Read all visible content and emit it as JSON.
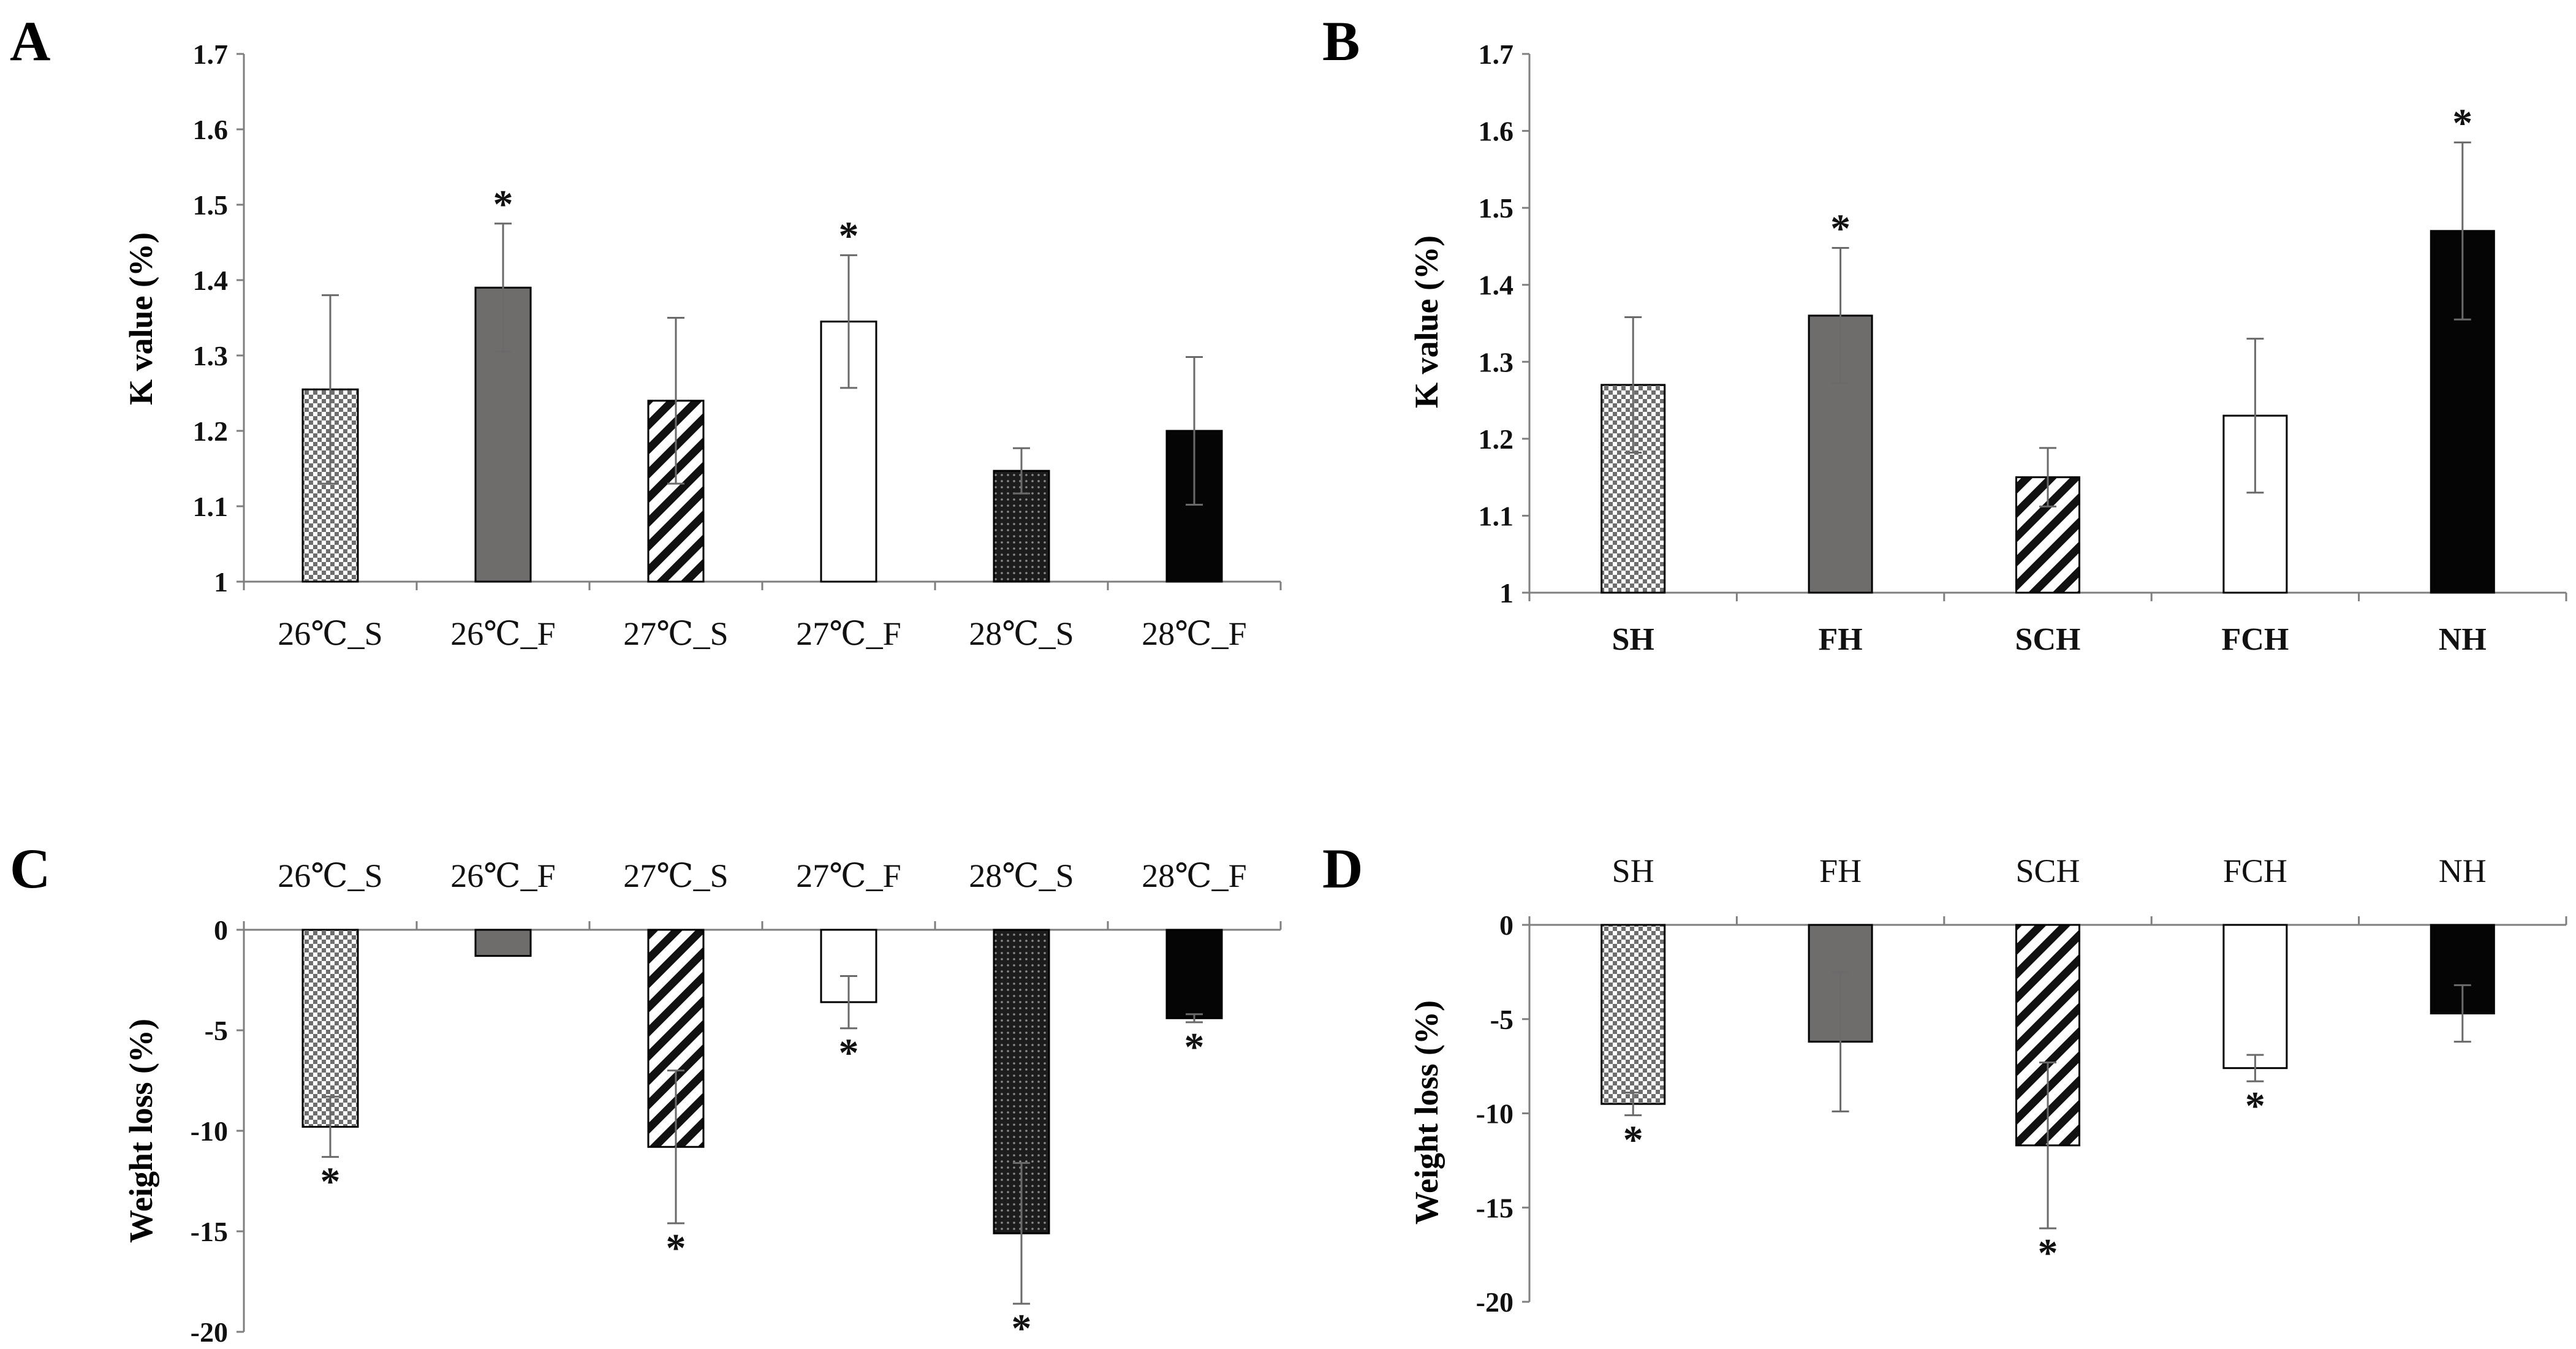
{
  "figure": {
    "panel_letters": [
      "A",
      "B",
      "C",
      "D"
    ]
  },
  "chart_data": [
    {
      "id": "A",
      "type": "bar",
      "ylabel": "K value (%)",
      "ylim": [
        1,
        1.7
      ],
      "yticks": [
        1,
        1.1,
        1.2,
        1.3,
        1.4,
        1.5,
        1.6,
        1.7
      ],
      "categories": [
        "26℃_S",
        "26℃_F",
        "27℃_S",
        "27℃_F",
        "28℃_S",
        "28℃_F"
      ],
      "values": [
        1.255,
        1.39,
        1.24,
        1.345,
        1.147,
        1.2
      ],
      "errors": [
        0.125,
        0.085,
        0.11,
        0.088,
        0.03,
        0.098
      ],
      "significant": [
        false,
        true,
        false,
        true,
        false,
        false
      ],
      "patterns": [
        "checker",
        "gray",
        "diag",
        "white",
        "dots",
        "black"
      ],
      "category_style": "regular",
      "axis_position": "bottom"
    },
    {
      "id": "B",
      "type": "bar",
      "ylabel": "K value (%)",
      "ylim": [
        1,
        1.7
      ],
      "yticks": [
        1,
        1.1,
        1.2,
        1.3,
        1.4,
        1.5,
        1.6,
        1.7
      ],
      "categories": [
        "SH",
        "FH",
        "SCH",
        "FCH",
        "NH"
      ],
      "values": [
        1.27,
        1.36,
        1.15,
        1.23,
        1.47
      ],
      "errors": [
        0.088,
        0.088,
        0.038,
        0.1,
        0.115
      ],
      "significant": [
        false,
        true,
        false,
        false,
        true
      ],
      "patterns": [
        "checker",
        "gray",
        "diag",
        "white",
        "black"
      ],
      "category_style": "bold",
      "axis_position": "bottom"
    },
    {
      "id": "C",
      "type": "bar",
      "ylabel": "Weight loss (%)",
      "ylim": [
        -20,
        0
      ],
      "yticks": [
        0,
        -5,
        -10,
        -15,
        -20
      ],
      "categories": [
        "26℃_S",
        "26℃_F",
        "27℃_S",
        "27℃_F",
        "28℃_S",
        "28℃_F"
      ],
      "values": [
        -9.8,
        -1.3,
        -10.8,
        -3.6,
        -15.1,
        -4.4
      ],
      "errors": [
        1.5,
        0.0,
        3.8,
        1.3,
        3.5,
        0.2
      ],
      "significant": [
        true,
        false,
        true,
        true,
        true,
        true
      ],
      "patterns": [
        "checker",
        "gray",
        "diag",
        "white",
        "dots",
        "black"
      ],
      "category_style": "regular",
      "axis_position": "top"
    },
    {
      "id": "D",
      "type": "bar",
      "ylabel": "Weight loss (%)",
      "ylim": [
        -20,
        0
      ],
      "yticks": [
        0,
        -5,
        -10,
        -15,
        -20
      ],
      "categories": [
        "SH",
        "FH",
        "SCH",
        "FCH",
        "NH"
      ],
      "values": [
        -9.5,
        -6.2,
        -11.7,
        -7.6,
        -4.7
      ],
      "errors": [
        0.6,
        3.7,
        4.4,
        0.7,
        1.5
      ],
      "significant": [
        true,
        false,
        true,
        true,
        false
      ],
      "patterns": [
        "checker",
        "gray",
        "diag",
        "white",
        "black"
      ],
      "category_style": "regular",
      "axis_position": "top"
    }
  ],
  "marker_text": "*",
  "colors": {
    "gray_bar": "#6f6c6c",
    "black_bar": "#050505",
    "axis": "#7f7f7f",
    "errorbar": "#6a6a6a",
    "text": "#111111"
  }
}
